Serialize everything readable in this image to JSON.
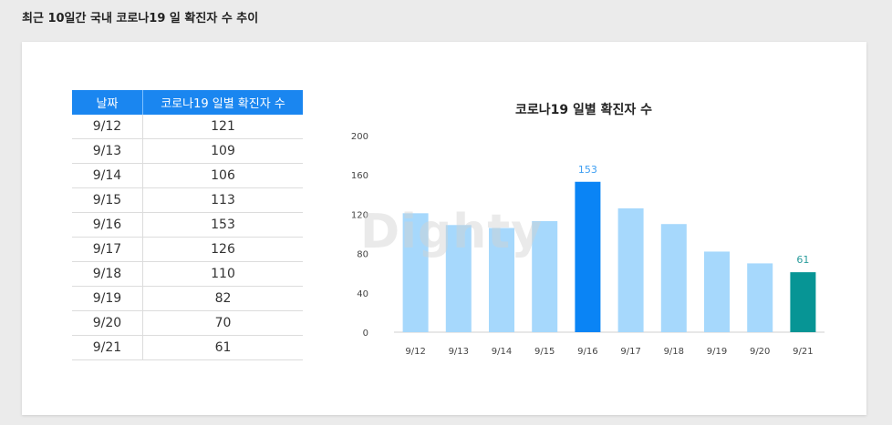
{
  "page": {
    "title": "최근 10일간 국내 코로나19 일 확진자 수 추이",
    "watermark": "Dighty"
  },
  "table": {
    "headers": [
      "날짜",
      "코로나19 일별 확진자 수"
    ],
    "rows": [
      {
        "date": "9/12",
        "count": "121"
      },
      {
        "date": "9/13",
        "count": "109"
      },
      {
        "date": "9/14",
        "count": "106"
      },
      {
        "date": "9/15",
        "count": "113"
      },
      {
        "date": "9/16",
        "count": "153"
      },
      {
        "date": "9/17",
        "count": "126"
      },
      {
        "date": "9/18",
        "count": "110"
      },
      {
        "date": "9/19",
        "count": "82"
      },
      {
        "date": "9/20",
        "count": "70"
      },
      {
        "date": "9/21",
        "count": "61"
      }
    ]
  },
  "chart_data": {
    "type": "bar",
    "title": "코로나19 일별 확진자 수",
    "xlabel": "",
    "ylabel": "",
    "categories": [
      "9/12",
      "9/13",
      "9/14",
      "9/15",
      "9/16",
      "9/17",
      "9/18",
      "9/19",
      "9/20",
      "9/21"
    ],
    "values": [
      121,
      109,
      106,
      113,
      153,
      126,
      110,
      82,
      70,
      61
    ],
    "ylim": [
      0,
      200
    ],
    "yticks": [
      0,
      40,
      80,
      120,
      160,
      200
    ],
    "grid": false,
    "data_labels": [
      {
        "category": "9/16",
        "value": "153"
      },
      {
        "category": "9/21",
        "value": "61"
      }
    ],
    "colors": {
      "default": "#a6d8fc",
      "max": "#0a84f5",
      "latest": "#079595",
      "max_label": "#3d9ef2",
      "latest_label": "#2a9c9c"
    }
  }
}
